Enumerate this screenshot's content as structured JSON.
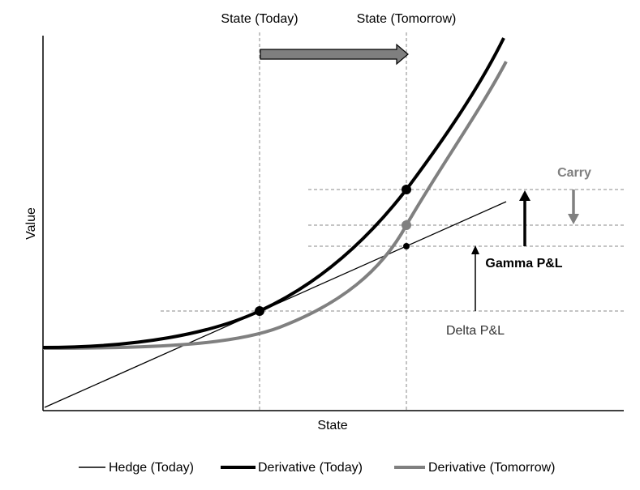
{
  "labels": {
    "state_today": "State (Today)",
    "state_tomorrow": "State (Tomorrow)",
    "axis_x": "State",
    "axis_y": "Value",
    "carry": "Carry",
    "gamma_pnl": "Gamma P&L",
    "delta_pnl": "Delta P&L"
  },
  "legend": {
    "hedge": "Hedge (Today)",
    "derivative_today": "Derivative (Today)",
    "derivative_tomorrow": "Derivative (Tomorrow)"
  },
  "colors": {
    "black": "#000000",
    "gray": "#808080",
    "dash": "#888888",
    "arrow_fill": "#7f7f7f"
  }
}
